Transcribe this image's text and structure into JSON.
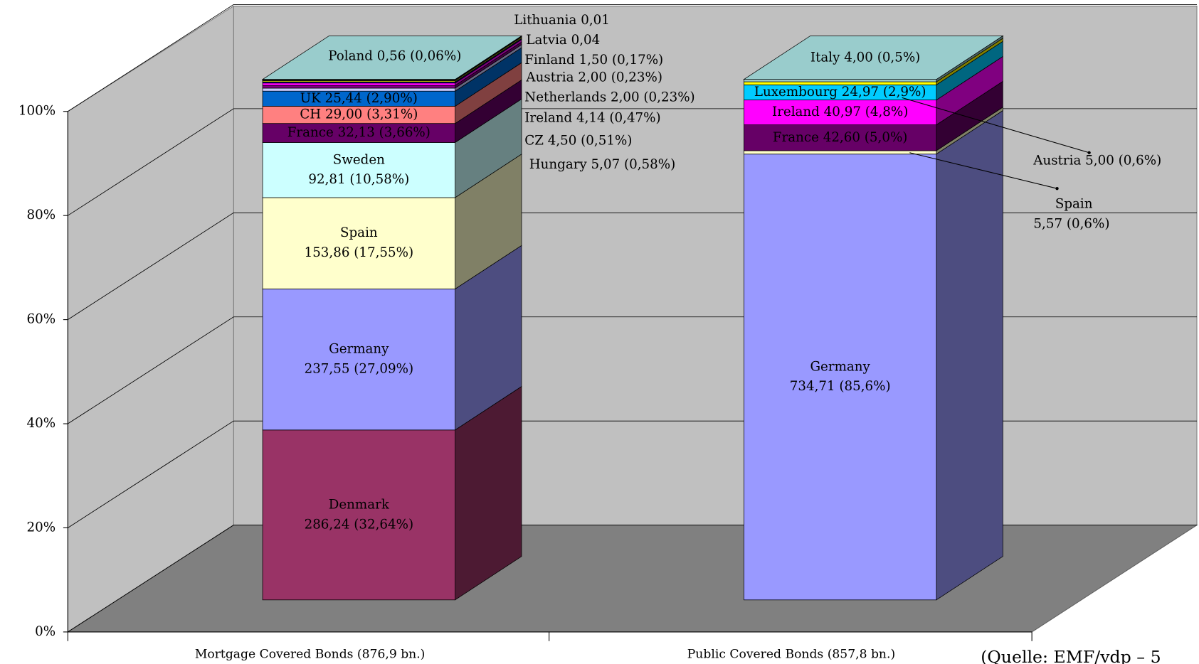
{
  "chart_data": {
    "type": "bar3d",
    "stacking": "percent",
    "categories": [
      "Mortgage Covered Bonds (876,9 bn.)",
      "Public Covered Bonds (857,8 bn.)"
    ],
    "ylim": [
      0,
      100
    ],
    "yticks": [
      {
        "value": 0,
        "label": "0%"
      },
      {
        "value": 20,
        "label": "20%"
      },
      {
        "value": 40,
        "label": "40%"
      },
      {
        "value": 60,
        "label": "60%"
      },
      {
        "value": 80,
        "label": "80%"
      },
      {
        "value": 100,
        "label": "100%"
      }
    ],
    "grid": true,
    "source": "(Quelle: EMF/vdp – 5",
    "series": [
      {
        "name": "Denmark",
        "color": "#993366",
        "values": [
          286.24,
          null
        ],
        "value_labels": [
          "286,24 (32,64%)",
          null
        ]
      },
      {
        "name": "Germany",
        "color": "#9999ff",
        "values": [
          237.55,
          734.71
        ],
        "value_labels": [
          "237,55 (27,09%)",
          "734,71 (85,6%)"
        ]
      },
      {
        "name": "Spain",
        "color": "#ffffcc",
        "values": [
          153.86,
          5.57
        ],
        "value_labels": [
          "153,86 (17,55%)",
          "5,57 (0,6%)"
        ]
      },
      {
        "name": "Sweden",
        "color": "#ccffff",
        "values": [
          92.81,
          null
        ],
        "value_labels": [
          "92,81 (10,58%)",
          null
        ]
      },
      {
        "name": "France",
        "color": "#660066",
        "values": [
          32.13,
          42.6
        ],
        "value_labels": [
          "32,13 (3,66%)",
          "42,60 (5,0%)"
        ]
      },
      {
        "name": "CH",
        "color": "#ff8080",
        "values": [
          29.0,
          null
        ],
        "value_labels": [
          "29,00 (3,31%)",
          null
        ]
      },
      {
        "name": "UK",
        "color": "#0066cc",
        "values": [
          25.44,
          null
        ],
        "value_labels": [
          "25,44 (2,90%)",
          null
        ]
      },
      {
        "name": "Hungary",
        "color": "#ccccff",
        "values": [
          5.07,
          null
        ],
        "value_labels": [
          "5,07 (0,58%)",
          null
        ]
      },
      {
        "name": "CZ",
        "color": "#800080",
        "values": [
          4.5,
          null
        ],
        "value_labels": [
          "4,50 (0,51%)",
          null
        ]
      },
      {
        "name": "Ireland",
        "color": "#ff00ff",
        "values": [
          4.14,
          40.97
        ],
        "value_labels": [
          "4,14 (0,47%)",
          "40,97 (4,8%)"
        ]
      },
      {
        "name": "Netherlands",
        "color": "#000080",
        "values": [
          2.0,
          null
        ],
        "value_labels": [
          "2,00 (0,23%)",
          null
        ]
      },
      {
        "name": "Luxembourg",
        "color": "#00ccff",
        "values": [
          null,
          24.97
        ],
        "value_labels": [
          null,
          "24,97 (2,9%)"
        ]
      },
      {
        "name": "Austria",
        "color": "#ffff00",
        "values": [
          2.0,
          5.0
        ],
        "value_labels": [
          "2,00 (0,23%)",
          "5,00 (0,6%)"
        ]
      },
      {
        "name": "Finland",
        "color": "#003366",
        "values": [
          1.5,
          null
        ],
        "value_labels": [
          "1,50 (0,17%)",
          null
        ]
      },
      {
        "name": "Latvia",
        "color": "#993366",
        "values": [
          0.04,
          null
        ],
        "value_labels": [
          "0,04",
          null
        ]
      },
      {
        "name": "Lithuania",
        "color": "#ccffff",
        "values": [
          0.01,
          null
        ],
        "value_labels": [
          "0,01",
          null
        ]
      },
      {
        "name": "Poland",
        "color": "#99cccc",
        "values": [
          0.56,
          null
        ],
        "value_labels": [
          "0,56 (0,06%)",
          null
        ]
      },
      {
        "name": "Italy",
        "color": "#99cccc",
        "values": [
          null,
          4.0
        ],
        "value_labels": [
          null,
          "4,00 (0,5%)"
        ]
      }
    ]
  }
}
